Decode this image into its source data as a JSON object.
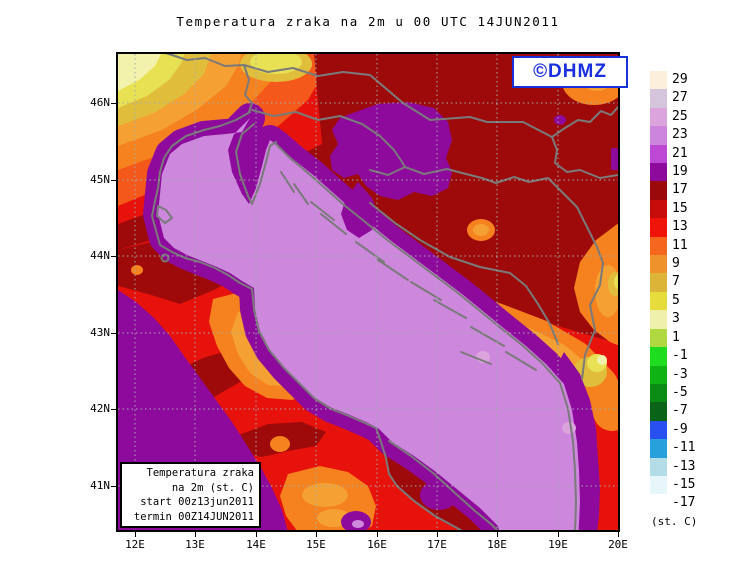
{
  "title": "Temperatura zraka na 2m u 00 UTC 14JUN2011",
  "logo": {
    "text": "©DHMZ"
  },
  "info_box": {
    "lines": [
      "Temperatura zraka",
      "na 2m (st. C)",
      "start 00z13jun2011",
      "termin 00Z14JUN2011"
    ]
  },
  "x_axis": {
    "labels": [
      "12E",
      "13E",
      "14E",
      "15E",
      "16E",
      "17E",
      "18E",
      "19E",
      "20E"
    ]
  },
  "y_axis": {
    "labels": [
      "46N",
      "45N",
      "44N",
      "43N",
      "42N",
      "41N"
    ]
  },
  "legend": {
    "unit_label": "(st. C)",
    "entries": [
      {
        "value": "29",
        "color": "#FBEEDA"
      },
      {
        "value": "27",
        "color": "#D4C4DC"
      },
      {
        "value": "25",
        "color": "#DCA4DC"
      },
      {
        "value": "23",
        "color": "#CC84DC"
      },
      {
        "value": "21",
        "color": "#BC48D4"
      },
      {
        "value": "19",
        "color": "#8E0A9C"
      },
      {
        "value": "17",
        "color": "#9A0A0A"
      },
      {
        "value": "15",
        "color": "#C80C0A"
      },
      {
        "value": "13",
        "color": "#F01408"
      },
      {
        "value": "11",
        "color": "#F5661E"
      },
      {
        "value": "9",
        "color": "#F0922C"
      },
      {
        "value": "7",
        "color": "#DCB438"
      },
      {
        "value": "5",
        "color": "#E6DC3C"
      },
      {
        "value": "3",
        "color": "#EEF0AC"
      },
      {
        "value": "1",
        "color": "#B0D840"
      },
      {
        "value": "-1",
        "color": "#1EDC1E"
      },
      {
        "value": "-3",
        "color": "#0FB414"
      },
      {
        "value": "-5",
        "color": "#0A8C14"
      },
      {
        "value": "-7",
        "color": "#0A6418"
      },
      {
        "value": "-9",
        "color": "#2850F0"
      },
      {
        "value": "-11",
        "color": "#28A0DC"
      },
      {
        "value": "-13",
        "color": "#B4DCE6"
      },
      {
        "value": "-15",
        "color": "#E6F6FA"
      },
      {
        "value": "-17",
        "color": "#FFFFFF"
      }
    ]
  }
}
